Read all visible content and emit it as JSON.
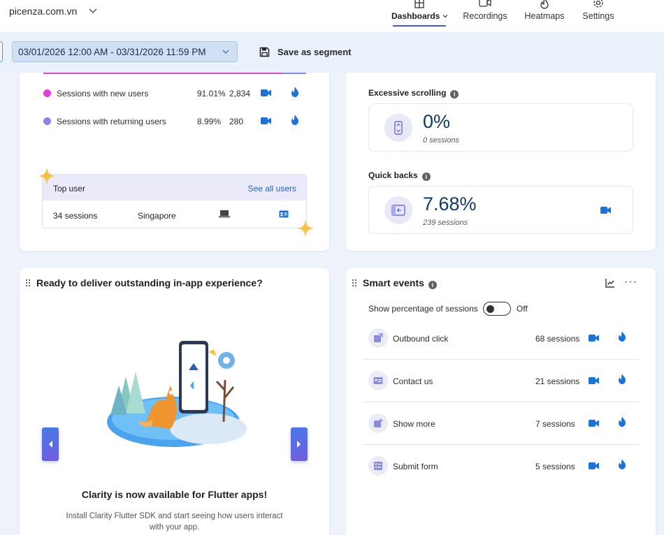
{
  "header": {
    "site": "picenza.com.vn",
    "nav": [
      {
        "label": "Dashboards",
        "icon": "dashboard-icon",
        "active": true
      },
      {
        "label": "Recordings",
        "icon": "video-icon"
      },
      {
        "label": "Heatmaps",
        "icon": "flame-icon"
      },
      {
        "label": "Settings",
        "icon": "gear-icon"
      }
    ]
  },
  "filters": {
    "date_range": "03/01/2026 12:00 AM - 03/31/2026 11:59 PM",
    "save_segment": "Save as segment"
  },
  "sessions_card": {
    "rows": [
      {
        "label": "Sessions with new users",
        "percent": "91.01%",
        "count": "2,834",
        "color": "#e23be0"
      },
      {
        "label": "Sessions with returning users",
        "percent": "8.99%",
        "count": "280",
        "color": "#8a86e8"
      }
    ],
    "top_user": {
      "title": "Top user",
      "link": "See all users",
      "sessions": "34 sessions",
      "country": "Singapore"
    }
  },
  "metrics_card": {
    "excessive_scrolling": {
      "title": "Excessive scrolling",
      "value": "0%",
      "sub": "0 sessions"
    },
    "quick_backs": {
      "title": "Quick backs",
      "value": "7.68%",
      "sub": "239 sessions"
    }
  },
  "promo_card": {
    "title": "Ready to deliver outstanding in-app experience?",
    "headline": "Clarity is now available for Flutter apps!",
    "body": "Install Clarity Flutter SDK and start seeing how users interact with your app."
  },
  "smart_events": {
    "title": "Smart events",
    "toggle_label": "Show percentage of sessions",
    "toggle_state": "Off",
    "events": [
      {
        "label": "Outbound click",
        "count": "68 sessions"
      },
      {
        "label": "Contact us",
        "count": "21 sessions"
      },
      {
        "label": "Show more",
        "count": "7 sessions"
      },
      {
        "label": "Submit form",
        "count": "5 sessions"
      }
    ]
  },
  "colors": {
    "accent": "#1a73d9",
    "nav_underline": "#4b57c7",
    "metric_value": "#0f3a66"
  }
}
